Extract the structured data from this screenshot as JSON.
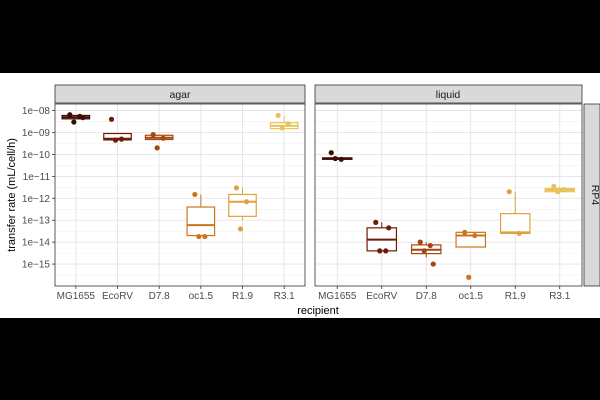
{
  "chart_data": {
    "type": "box",
    "xlabel": "recipient",
    "ylabel": "transfer rate (mL/cell/h)",
    "row_strip": "RP4",
    "y_scale": "log10",
    "ylim": [
      1e-16,
      2e-08
    ],
    "y_ticks": [
      {
        "value": 1e-08,
        "label": "1e−08"
      },
      {
        "value": 1e-09,
        "label": "1e−09"
      },
      {
        "value": 1e-10,
        "label": "1e−10"
      },
      {
        "value": 1e-11,
        "label": "1e−11"
      },
      {
        "value": 1e-12,
        "label": "1e−12"
      },
      {
        "value": 1e-13,
        "label": "1e−13"
      },
      {
        "value": 1e-14,
        "label": "1e−14"
      },
      {
        "value": 1e-15,
        "label": "1e−15"
      }
    ],
    "categories": [
      "MG1655",
      "EcoRV",
      "D7.8",
      "oc1.5",
      "R1.9",
      "R3.1"
    ],
    "colors": {
      "MG1655": "#3d0c02",
      "EcoRV": "#6e1a06",
      "D7.8": "#a3470f",
      "oc1.5": "#c8761f",
      "R1.9": "#e0a23d",
      "R3.1": "#e9c25a"
    },
    "grid": true,
    "legend": "none",
    "panels": [
      {
        "name": "agar",
        "boxes": [
          {
            "category": "MG1655",
            "q1": 4.2e-09,
            "median": 5e-09,
            "q3": 6e-09,
            "min": 4.2e-09,
            "max": 6e-09,
            "points": [
              6.5e-09,
              5.5e-09,
              3e-09,
              4.8e-09
            ]
          },
          {
            "category": "EcoRV",
            "q1": 4.6e-10,
            "median": 5.2e-10,
            "q3": 9e-10,
            "min": 4.6e-10,
            "max": 9e-10,
            "points": [
              4e-09,
              5e-10,
              4.5e-10
            ]
          },
          {
            "category": "D7.8",
            "q1": 4.8e-10,
            "median": 5.8e-10,
            "q3": 7.5e-10,
            "min": 4.8e-10,
            "max": 7.5e-10,
            "points": [
              8e-10,
              5.5e-10,
              2e-10
            ]
          },
          {
            "category": "oc1.5",
            "q1": 2e-14,
            "median": 6e-14,
            "q3": 4e-13,
            "min": 1.8e-14,
            "max": 1.5e-12,
            "points": [
              1.5e-12,
              1.8e-14,
              1.8e-14
            ]
          },
          {
            "category": "R1.9",
            "q1": 1.5e-13,
            "median": 7e-13,
            "q3": 1.5e-12,
            "min": 1e-13,
            "max": 3e-12,
            "points": [
              3e-12,
              7e-13,
              4e-14
            ]
          },
          {
            "category": "R3.1",
            "q1": 1.5e-09,
            "median": 2e-09,
            "q3": 2.8e-09,
            "min": 1.5e-09,
            "max": 6e-09,
            "points": [
              6e-09,
              2.5e-09,
              1.6e-09
            ]
          }
        ]
      },
      {
        "name": "liquid",
        "boxes": [
          {
            "category": "MG1655",
            "q1": 6e-11,
            "median": 6.5e-11,
            "q3": 7e-11,
            "min": 6e-11,
            "max": 7e-11,
            "points": [
              1.2e-10,
              6e-11,
              6.5e-11
            ]
          },
          {
            "category": "EcoRV",
            "q1": 4e-15,
            "median": 1.3e-14,
            "q3": 4.5e-14,
            "min": 4e-15,
            "max": 8e-14,
            "points": [
              8e-14,
              4e-15,
              4e-15,
              4.5e-14
            ]
          },
          {
            "category": "D7.8",
            "q1": 3e-15,
            "median": 4.5e-15,
            "q3": 7.5e-15,
            "min": 2e-15,
            "max": 1e-14,
            "points": [
              1e-14,
              7e-15,
              4e-15,
              1e-15
            ]
          },
          {
            "category": "oc1.5",
            "q1": 6e-15,
            "median": 2e-14,
            "q3": 2.8e-14,
            "min": 6e-15,
            "max": 2.8e-14,
            "points": [
              2.8e-14,
              2e-14,
              2.5e-16
            ]
          },
          {
            "category": "R1.9",
            "q1": 2.5e-14,
            "median": 2.8e-14,
            "q3": 2e-13,
            "min": 2.5e-14,
            "max": 2e-12,
            "points": [
              2e-12,
              2.5e-14
            ]
          },
          {
            "category": "R3.1",
            "q1": 2e-12,
            "median": 2.4e-12,
            "q3": 2.8e-12,
            "min": 2e-12,
            "max": 3.5e-12,
            "points": [
              3.5e-12,
              2.5e-12,
              2e-12
            ]
          }
        ]
      }
    ]
  }
}
